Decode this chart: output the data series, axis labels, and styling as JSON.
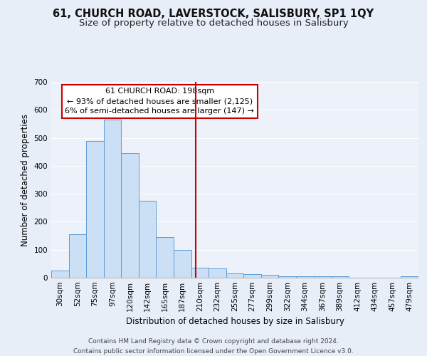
{
  "title1": "61, CHURCH ROAD, LAVERSTOCK, SALISBURY, SP1 1QY",
  "title2": "Size of property relative to detached houses in Salisbury",
  "xlabel": "Distribution of detached houses by size in Salisbury",
  "ylabel": "Number of detached properties",
  "bar_labels": [
    "30sqm",
    "52sqm",
    "75sqm",
    "97sqm",
    "120sqm",
    "142sqm",
    "165sqm",
    "187sqm",
    "210sqm",
    "232sqm",
    "255sqm",
    "277sqm",
    "299sqm",
    "322sqm",
    "344sqm",
    "367sqm",
    "389sqm",
    "412sqm",
    "434sqm",
    "457sqm",
    "479sqm"
  ],
  "bar_heights": [
    25,
    155,
    490,
    565,
    445,
    275,
    145,
    100,
    35,
    33,
    15,
    14,
    10,
    5,
    4,
    4,
    5,
    0,
    0,
    0,
    5
  ],
  "bar_color": "#cce0f5",
  "bar_edge_color": "#5b9bd5",
  "vline_x": 7.75,
  "vline_color": "#cc0000",
  "ylim": [
    0,
    700
  ],
  "yticks": [
    0,
    100,
    200,
    300,
    400,
    500,
    600,
    700
  ],
  "annotation_title": "61 CHURCH ROAD: 198sqm",
  "annotation_line1": "← 93% of detached houses are smaller (2,125)",
  "annotation_line2": "6% of semi-detached houses are larger (147) →",
  "annotation_box_color": "#ffffff",
  "annotation_box_edge": "#cc0000",
  "footer1": "Contains HM Land Registry data © Crown copyright and database right 2024.",
  "footer2": "Contains public sector information licensed under the Open Government Licence v3.0.",
  "bg_color": "#e8eef8",
  "plot_bg_color": "#edf2fa",
  "grid_color": "#ffffff",
  "title1_fontsize": 10.5,
  "title2_fontsize": 9.5,
  "axis_label_fontsize": 8.5,
  "tick_fontsize": 7.5,
  "annotation_fontsize": 8,
  "footer_fontsize": 6.5
}
